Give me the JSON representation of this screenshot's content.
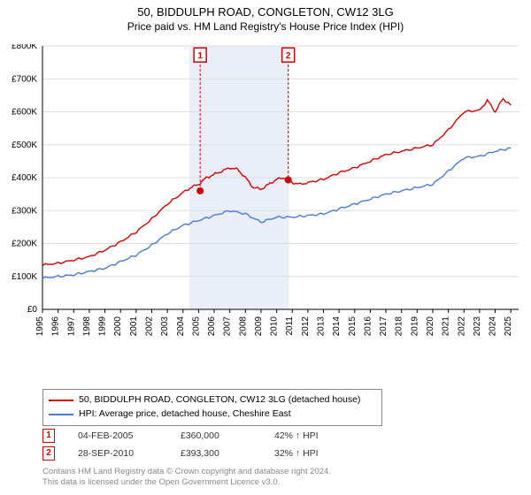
{
  "title": "50, BIDDULPH ROAD, CONGLETON, CW12 3LG",
  "subtitle": "Price paid vs. HM Land Registry's House Price Index (HPI)",
  "chart": {
    "type": "line",
    "background_color": "#ffffff",
    "grid_color": "#dddddd",
    "axis_color": "#000000",
    "highlight_band_color": "#e9eef8",
    "highlight_band_start": 2004.4,
    "highlight_band_end": 2010.8,
    "xlim": [
      1995,
      2025.5
    ],
    "ylim": [
      0,
      800000
    ],
    "ytick_step": 100000,
    "ytick_labels": [
      "£0",
      "£100K",
      "£200K",
      "£300K",
      "£400K",
      "£500K",
      "£600K",
      "£700K",
      "£800K"
    ],
    "xtick_step": 1,
    "xtick_labels": [
      "1995",
      "1996",
      "1997",
      "1998",
      "1999",
      "2000",
      "2001",
      "2002",
      "2003",
      "2004",
      "2005",
      "2006",
      "2007",
      "2008",
      "2009",
      "2010",
      "2011",
      "2012",
      "2013",
      "2014",
      "2015",
      "2016",
      "2017",
      "2018",
      "2019",
      "2020",
      "2021",
      "2022",
      "2023",
      "2024",
      "2025"
    ],
    "axis_fontsize": 10,
    "series": [
      {
        "name": "price_paid",
        "color": "#d00000",
        "line_width": 1.4,
        "x": [
          1995,
          1996,
          1997,
          1998,
          1999,
          2000,
          2001,
          2002,
          2003,
          2004,
          2004.5,
          2005,
          2005.5,
          2006,
          2006.5,
          2007,
          2007.5,
          2008,
          2008.5,
          2009,
          2009.5,
          2010,
          2010.5,
          2011,
          2011.5,
          2012,
          2013,
          2014,
          2015,
          2016,
          2017,
          2018,
          2019,
          2020,
          2021,
          2022,
          2023,
          2023.5,
          2024,
          2024.5,
          2025
        ],
        "y": [
          135000,
          140000,
          150000,
          160000,
          180000,
          205000,
          235000,
          275000,
          320000,
          355000,
          370000,
          380000,
          400000,
          410000,
          420000,
          430000,
          425000,
          400000,
          370000,
          365000,
          380000,
          395000,
          400000,
          385000,
          380000,
          385000,
          395000,
          415000,
          430000,
          450000,
          470000,
          480000,
          490000,
          500000,
          545000,
          600000,
          605000,
          635000,
          600000,
          640000,
          620000
        ]
      },
      {
        "name": "hpi",
        "color": "#4a7bd0",
        "line_width": 1.4,
        "x": [
          1995,
          1996,
          1997,
          1998,
          1999,
          2000,
          2001,
          2002,
          2003,
          2004,
          2005,
          2006,
          2007,
          2008,
          2009,
          2010,
          2011,
          2012,
          2013,
          2014,
          2015,
          2016,
          2017,
          2018,
          2019,
          2020,
          2021,
          2022,
          2023,
          2024,
          2025
        ],
        "y": [
          95000,
          100000,
          105000,
          115000,
          125000,
          145000,
          165000,
          195000,
          230000,
          255000,
          270000,
          285000,
          300000,
          290000,
          265000,
          280000,
          280000,
          285000,
          290000,
          305000,
          320000,
          335000,
          350000,
          360000,
          370000,
          380000,
          420000,
          460000,
          465000,
          480000,
          490000
        ]
      }
    ],
    "markers": [
      {
        "label": "1",
        "x": 2005.1,
        "y": 360000,
        "badge_y": 770000,
        "color": "#d00000"
      },
      {
        "label": "2",
        "x": 2010.74,
        "y": 393300,
        "badge_y": 770000,
        "color": "#d00000"
      }
    ]
  },
  "legend": {
    "series1": {
      "color": "#d00000",
      "label": "50, BIDDULPH ROAD, CONGLETON, CW12 3LG (detached house)"
    },
    "series2": {
      "color": "#4a7bd0",
      "label": "HPI: Average price, detached house, Cheshire East"
    }
  },
  "data_points": [
    {
      "badge": "1",
      "date": "04-FEB-2005",
      "price": "£360,000",
      "pct": "42% ↑ HPI"
    },
    {
      "badge": "2",
      "date": "28-SEP-2010",
      "price": "£393,300",
      "pct": "32% ↑ HPI"
    }
  ],
  "footer_line1": "Contains HM Land Registry data © Crown copyright and database right 2024.",
  "footer_line2": "This data is licensed under the Open Government Licence v3.0."
}
